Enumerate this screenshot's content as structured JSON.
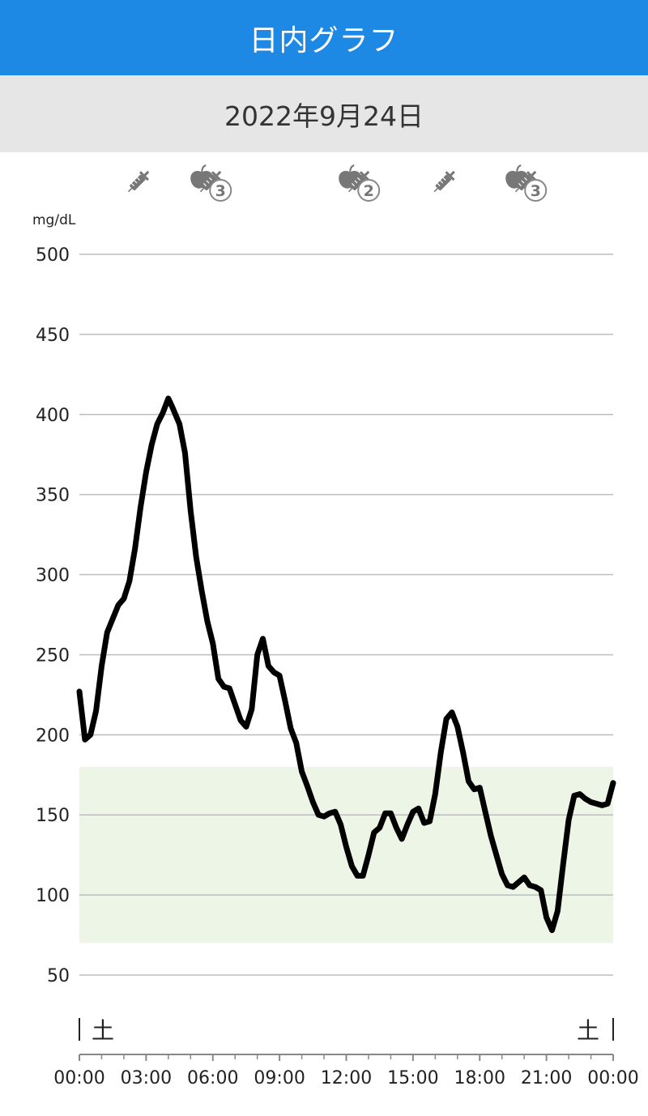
{
  "header": {
    "title": "日内グラフ"
  },
  "date_label": "2022年9月24日",
  "colors": {
    "header_bg": "#1e88e5",
    "date_bar_bg": "#e6e6e6",
    "target_band": "#edf6e6",
    "line": "#000000",
    "icon": "#777777"
  },
  "event_markers": [
    {
      "time": "02:40",
      "icon": "syringe-icon",
      "badge": ""
    },
    {
      "time": "05:50",
      "icon": "meal-insulin-icon",
      "badge": "3"
    },
    {
      "time": "12:30",
      "icon": "meal-insulin-icon",
      "badge": "2"
    },
    {
      "time": "16:25",
      "icon": "syringe-icon",
      "badge": ""
    },
    {
      "time": "20:00",
      "icon": "meal-insulin-icon",
      "badge": "3"
    }
  ],
  "chart_data": {
    "type": "line",
    "ylabel": "mg/dL",
    "ylim": [
      50,
      500
    ],
    "y_ticks": [
      500,
      450,
      400,
      350,
      300,
      250,
      200,
      150,
      100,
      50
    ],
    "xlim": [
      "00:00",
      "24:00"
    ],
    "x_ticks": [
      "00:00",
      "03:00",
      "06:00",
      "09:00",
      "12:00",
      "15:00",
      "18:00",
      "21:00",
      "00:00"
    ],
    "day_labels": {
      "start": "土",
      "end": "土"
    },
    "target_range": [
      70,
      180
    ],
    "grid": true,
    "series": [
      {
        "x": [
          "00:00",
          "00:15",
          "00:30",
          "00:45",
          "01:00",
          "01:15",
          "01:45",
          "02:00",
          "02:15",
          "02:30",
          "02:45",
          "03:00",
          "03:15",
          "03:30",
          "03:45",
          "04:00",
          "04:10",
          "04:30",
          "04:45",
          "05:00",
          "05:15",
          "05:30",
          "05:45",
          "06:00",
          "06:15",
          "06:30",
          "06:45",
          "07:15",
          "07:30",
          "07:45",
          "08:00",
          "08:15",
          "08:30",
          "08:45",
          "09:00",
          "09:15",
          "09:30",
          "09:45",
          "10:00",
          "10:15",
          "10:30",
          "10:45",
          "11:00",
          "11:15",
          "11:30",
          "11:45",
          "12:00",
          "12:15",
          "12:30",
          "12:45",
          "13:00",
          "13:15",
          "13:30",
          "13:45",
          "14:00",
          "14:15",
          "14:30",
          "14:45",
          "15:00",
          "15:15",
          "15:30",
          "15:45",
          "16:00",
          "16:15",
          "16:30",
          "16:45",
          "17:00",
          "17:15",
          "17:30",
          "17:45",
          "18:00",
          "18:15",
          "18:30",
          "18:45",
          "19:00",
          "19:15",
          "19:30",
          "19:45",
          "20:00",
          "20:15",
          "20:30",
          "20:45",
          "21:00",
          "21:15",
          "21:30",
          "21:45",
          "22:00",
          "22:15",
          "22:30",
          "22:45",
          "23:00",
          "23:15",
          "23:30",
          "23:45",
          "24:00"
        ],
        "values": [
          227,
          197,
          200,
          215,
          243,
          264,
          281,
          285,
          296,
          316,
          342,
          364,
          381,
          394,
          401,
          410,
          405,
          394,
          376,
          340,
          311,
          290,
          271,
          257,
          235,
          230,
          229,
          209,
          205,
          216,
          250,
          260,
          243,
          239,
          237,
          221,
          204,
          195,
          177,
          168,
          158,
          150,
          149,
          151,
          152,
          144,
          130,
          118,
          112,
          112,
          125,
          139,
          142,
          151,
          151,
          142,
          135,
          144,
          152,
          154,
          145,
          146,
          163,
          189,
          210,
          214,
          205,
          189,
          171,
          166,
          167,
          152,
          137,
          125,
          113,
          106,
          105,
          108,
          111,
          106,
          105,
          103,
          86,
          78,
          90,
          119,
          147,
          162,
          163,
          160,
          158,
          157,
          156,
          157,
          170
        ]
      }
    ]
  }
}
